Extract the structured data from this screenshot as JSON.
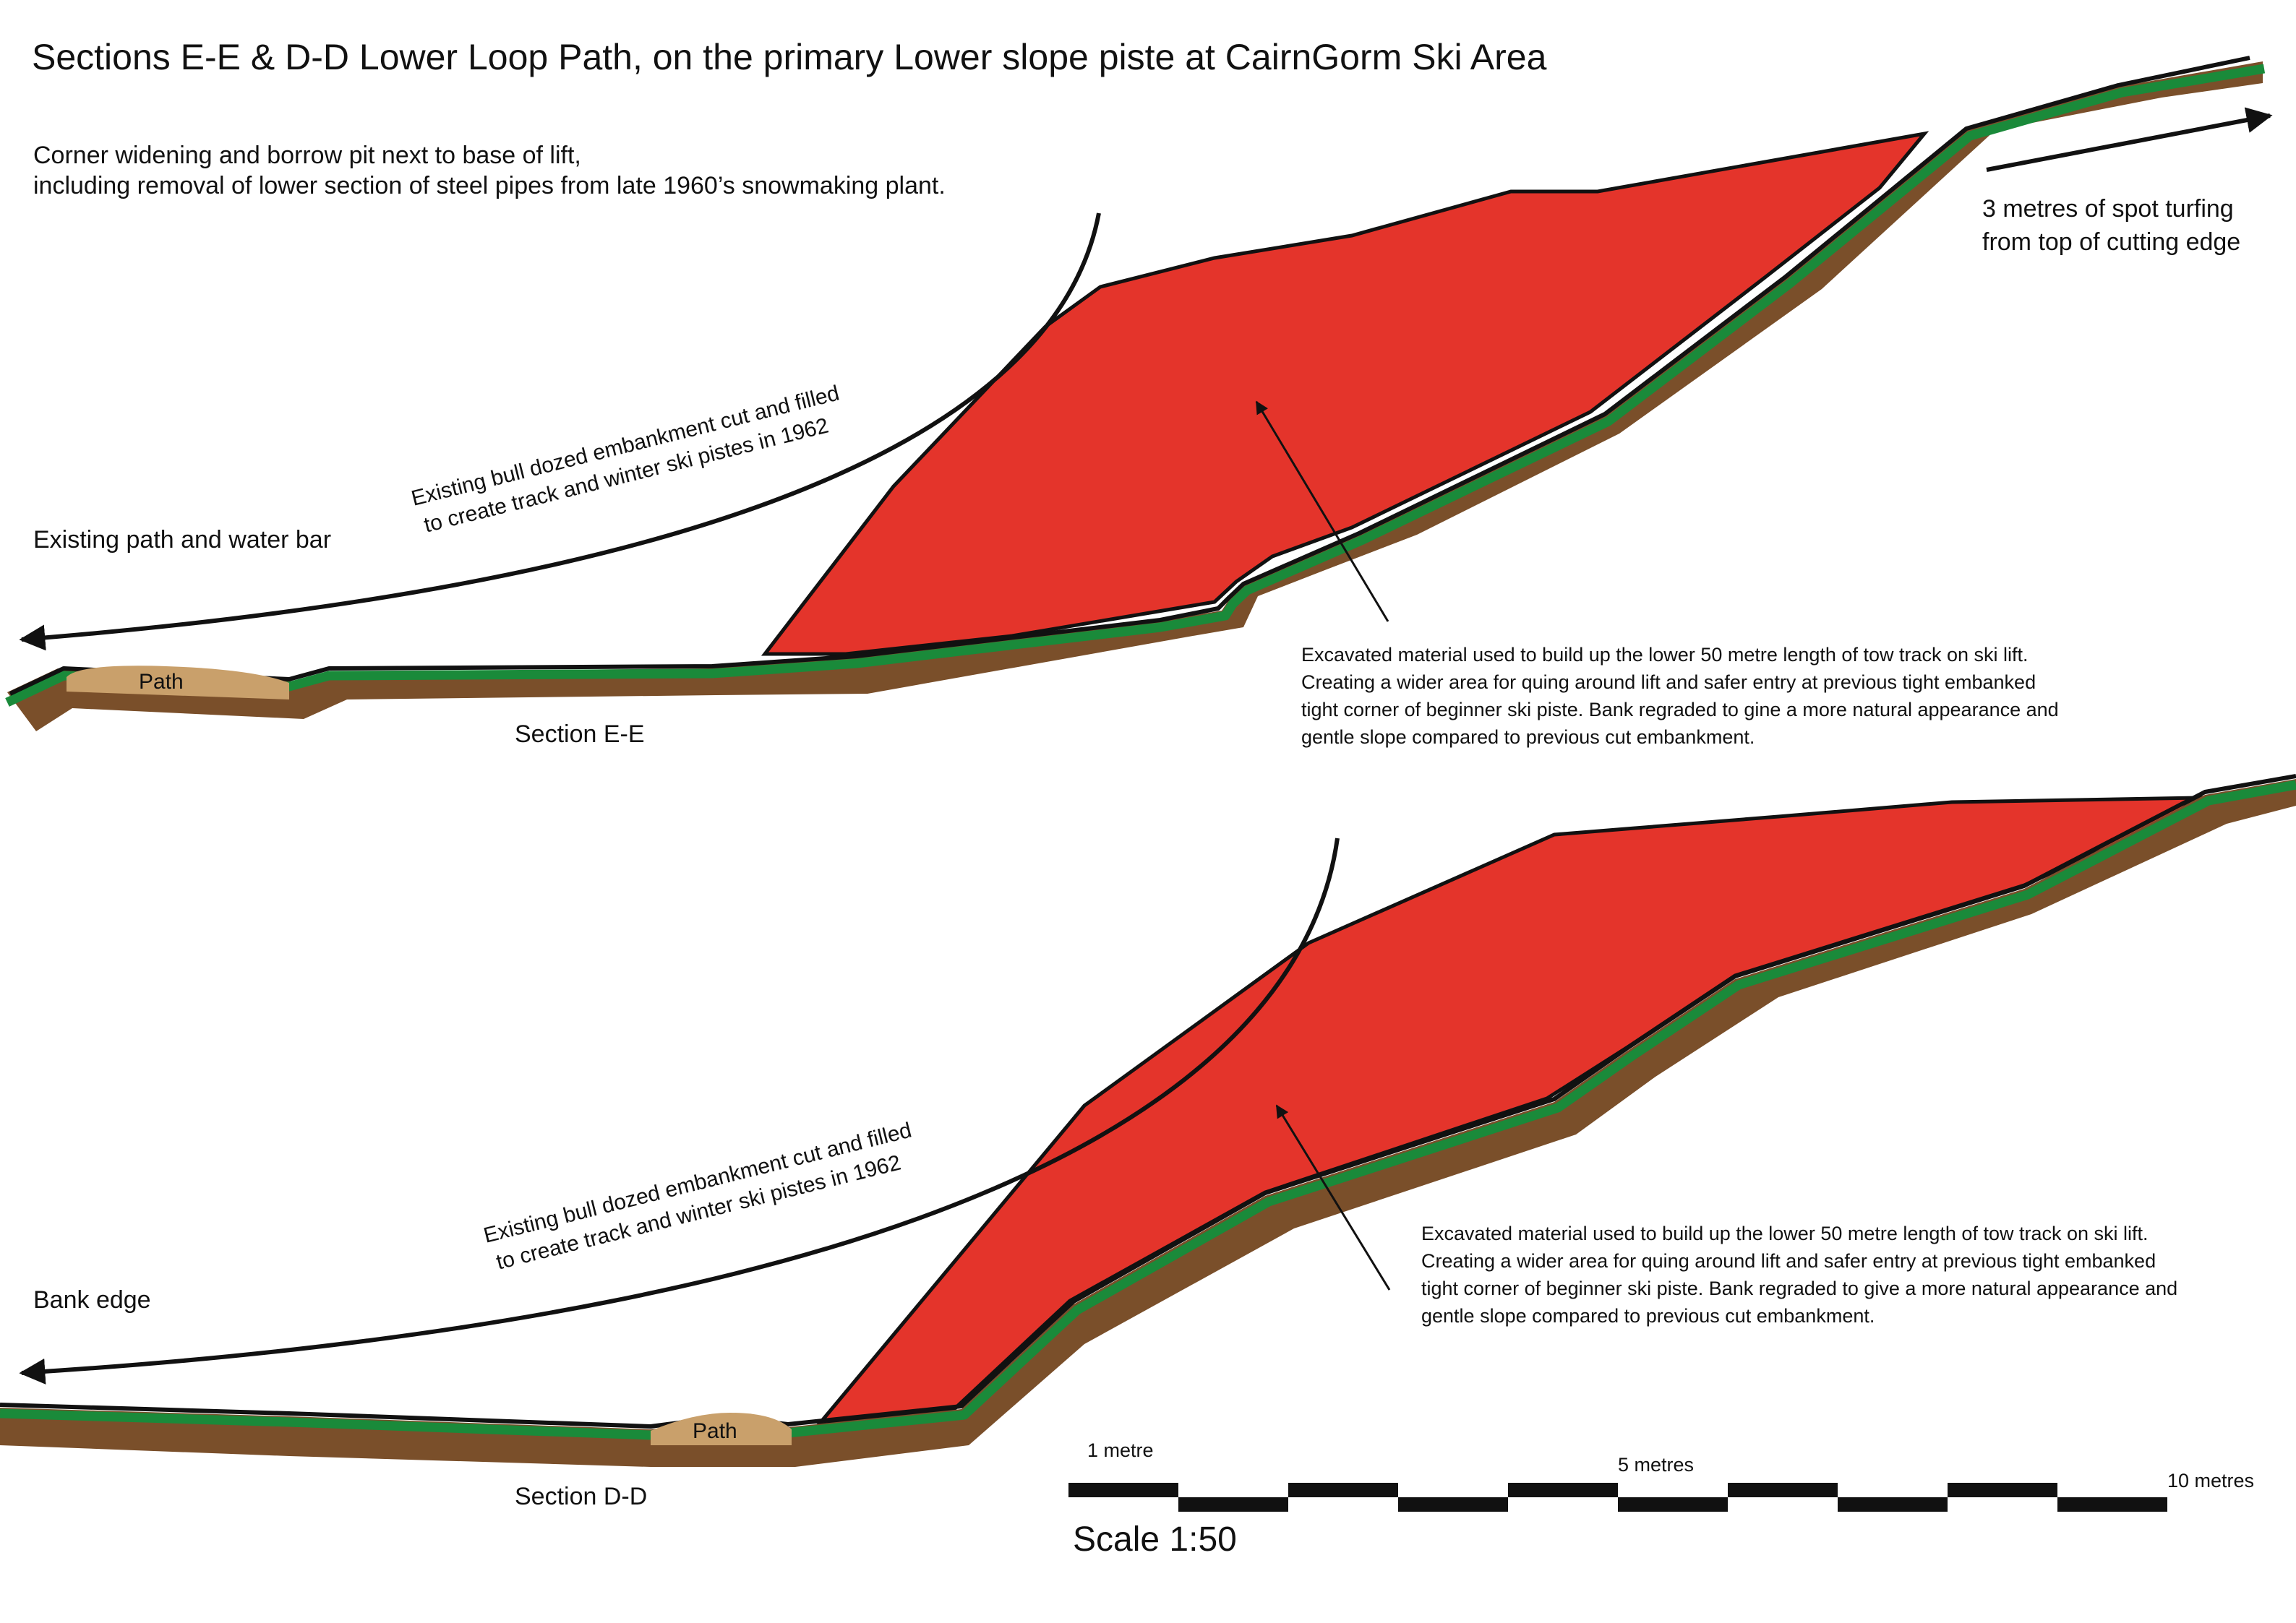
{
  "title": "Sections E-E & D-D Lower Loop Path, on the primary Lower slope piste at CairnGorm Ski Area",
  "intro": {
    "line1": "Corner widening and borrow pit  next to base of lift,",
    "line2": "including removal of lower section of steel pipes from late 1960’s snowmaking plant."
  },
  "section_ee": {
    "caption": "Section E-E",
    "path_label": "Path",
    "left_label": "Existing path and water bar",
    "curved_note": {
      "line1": "Existing bull dozed embankment cut and filled",
      "line2": "to create track and winter ski pistes  in 1962"
    },
    "turf_note": {
      "line1": "3 metres of spot turfing",
      "line2": "from top of cutting edge"
    },
    "excavated_note": {
      "line1": "Excavated material used to build up the lower 50 metre length of tow track on ski lift.",
      "line2": "Creating a wider area for quing around lift and safer entry at previous tight embanked",
      "line3": "tight corner of beginner ski piste.  Bank regraded to gine a more natural appearance and",
      "line4": "gentle slope compared to previous cut embankment."
    }
  },
  "section_dd": {
    "caption": "Section D-D",
    "path_label": "Path",
    "left_label": "Bank edge",
    "curved_note": {
      "line1": "Existing bull dozed embankment cut and filled",
      "line2": "to create track and winter ski pistes  in 1962"
    },
    "excavated_note": {
      "line1": "Excavated material used to build up the lower 50 metre length of tow track on ski lift.",
      "line2": "Creating a wider area for quing around lift and safer entry at previous tight embanked",
      "line3": "tight corner of beginner ski piste.  Bank regraded to give a more natural appearance and",
      "line4": "gentle slope compared to previous cut embankment."
    }
  },
  "scale_bar": {
    "label_1m": "1 metre",
    "label_5m": "5 metres",
    "label_10m": "10 metres",
    "scale_text": "Scale 1:50"
  },
  "colors": {
    "cut_fill": "#e4342b",
    "soil": "#7a4f2a",
    "turf": "#1a8a3a",
    "path_fill": "#c9a06b",
    "line": "#111111"
  }
}
